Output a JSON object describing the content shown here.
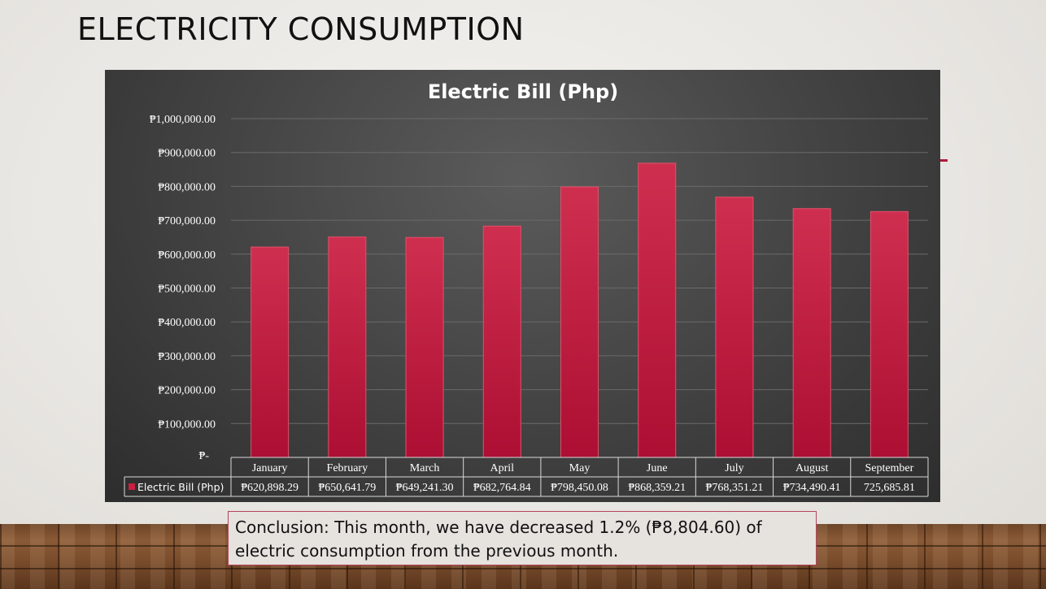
{
  "slide": {
    "title": "ELECTRICITY CONSUMPTION",
    "conclusion": "Conclusion: This month, we have decreased 1.2% (₱8,804.60) of electric consumption from the previous month."
  },
  "colors": {
    "bar": "#c8203f",
    "bar_dark": "#a80d30",
    "grid": "#6a6a6a",
    "text": "#ffffff"
  },
  "chart_data": {
    "type": "bar",
    "title": "Electric Bill (Php)",
    "categories": [
      "January",
      "February",
      "March",
      "April",
      "May",
      "June",
      "July",
      "August",
      "September"
    ],
    "series": [
      {
        "name": "Electric Bill (Php)",
        "values": [
          620898.29,
          650641.79,
          649241.3,
          682764.84,
          798450.08,
          868359.21,
          768351.21,
          734490.41,
          725685.81
        ],
        "labels": [
          "₱620,898.29",
          "₱650,641.79",
          "₱649,241.30",
          "₱682,764.84",
          "₱798,450.08",
          "₱868,359.21",
          "₱768,351.21",
          "₱734,490.41",
          "725,685.81"
        ]
      }
    ],
    "ylim": [
      0,
      1000000
    ],
    "yticks": [
      "₱-",
      "₱100,000.00",
      "₱200,000.00",
      "₱300,000.00",
      "₱400,000.00",
      "₱500,000.00",
      "₱600,000.00",
      "₱700,000.00",
      "₱800,000.00",
      "₱900,000.00",
      "₱1,000,000.00"
    ],
    "grid": true,
    "legend": "data-table"
  }
}
